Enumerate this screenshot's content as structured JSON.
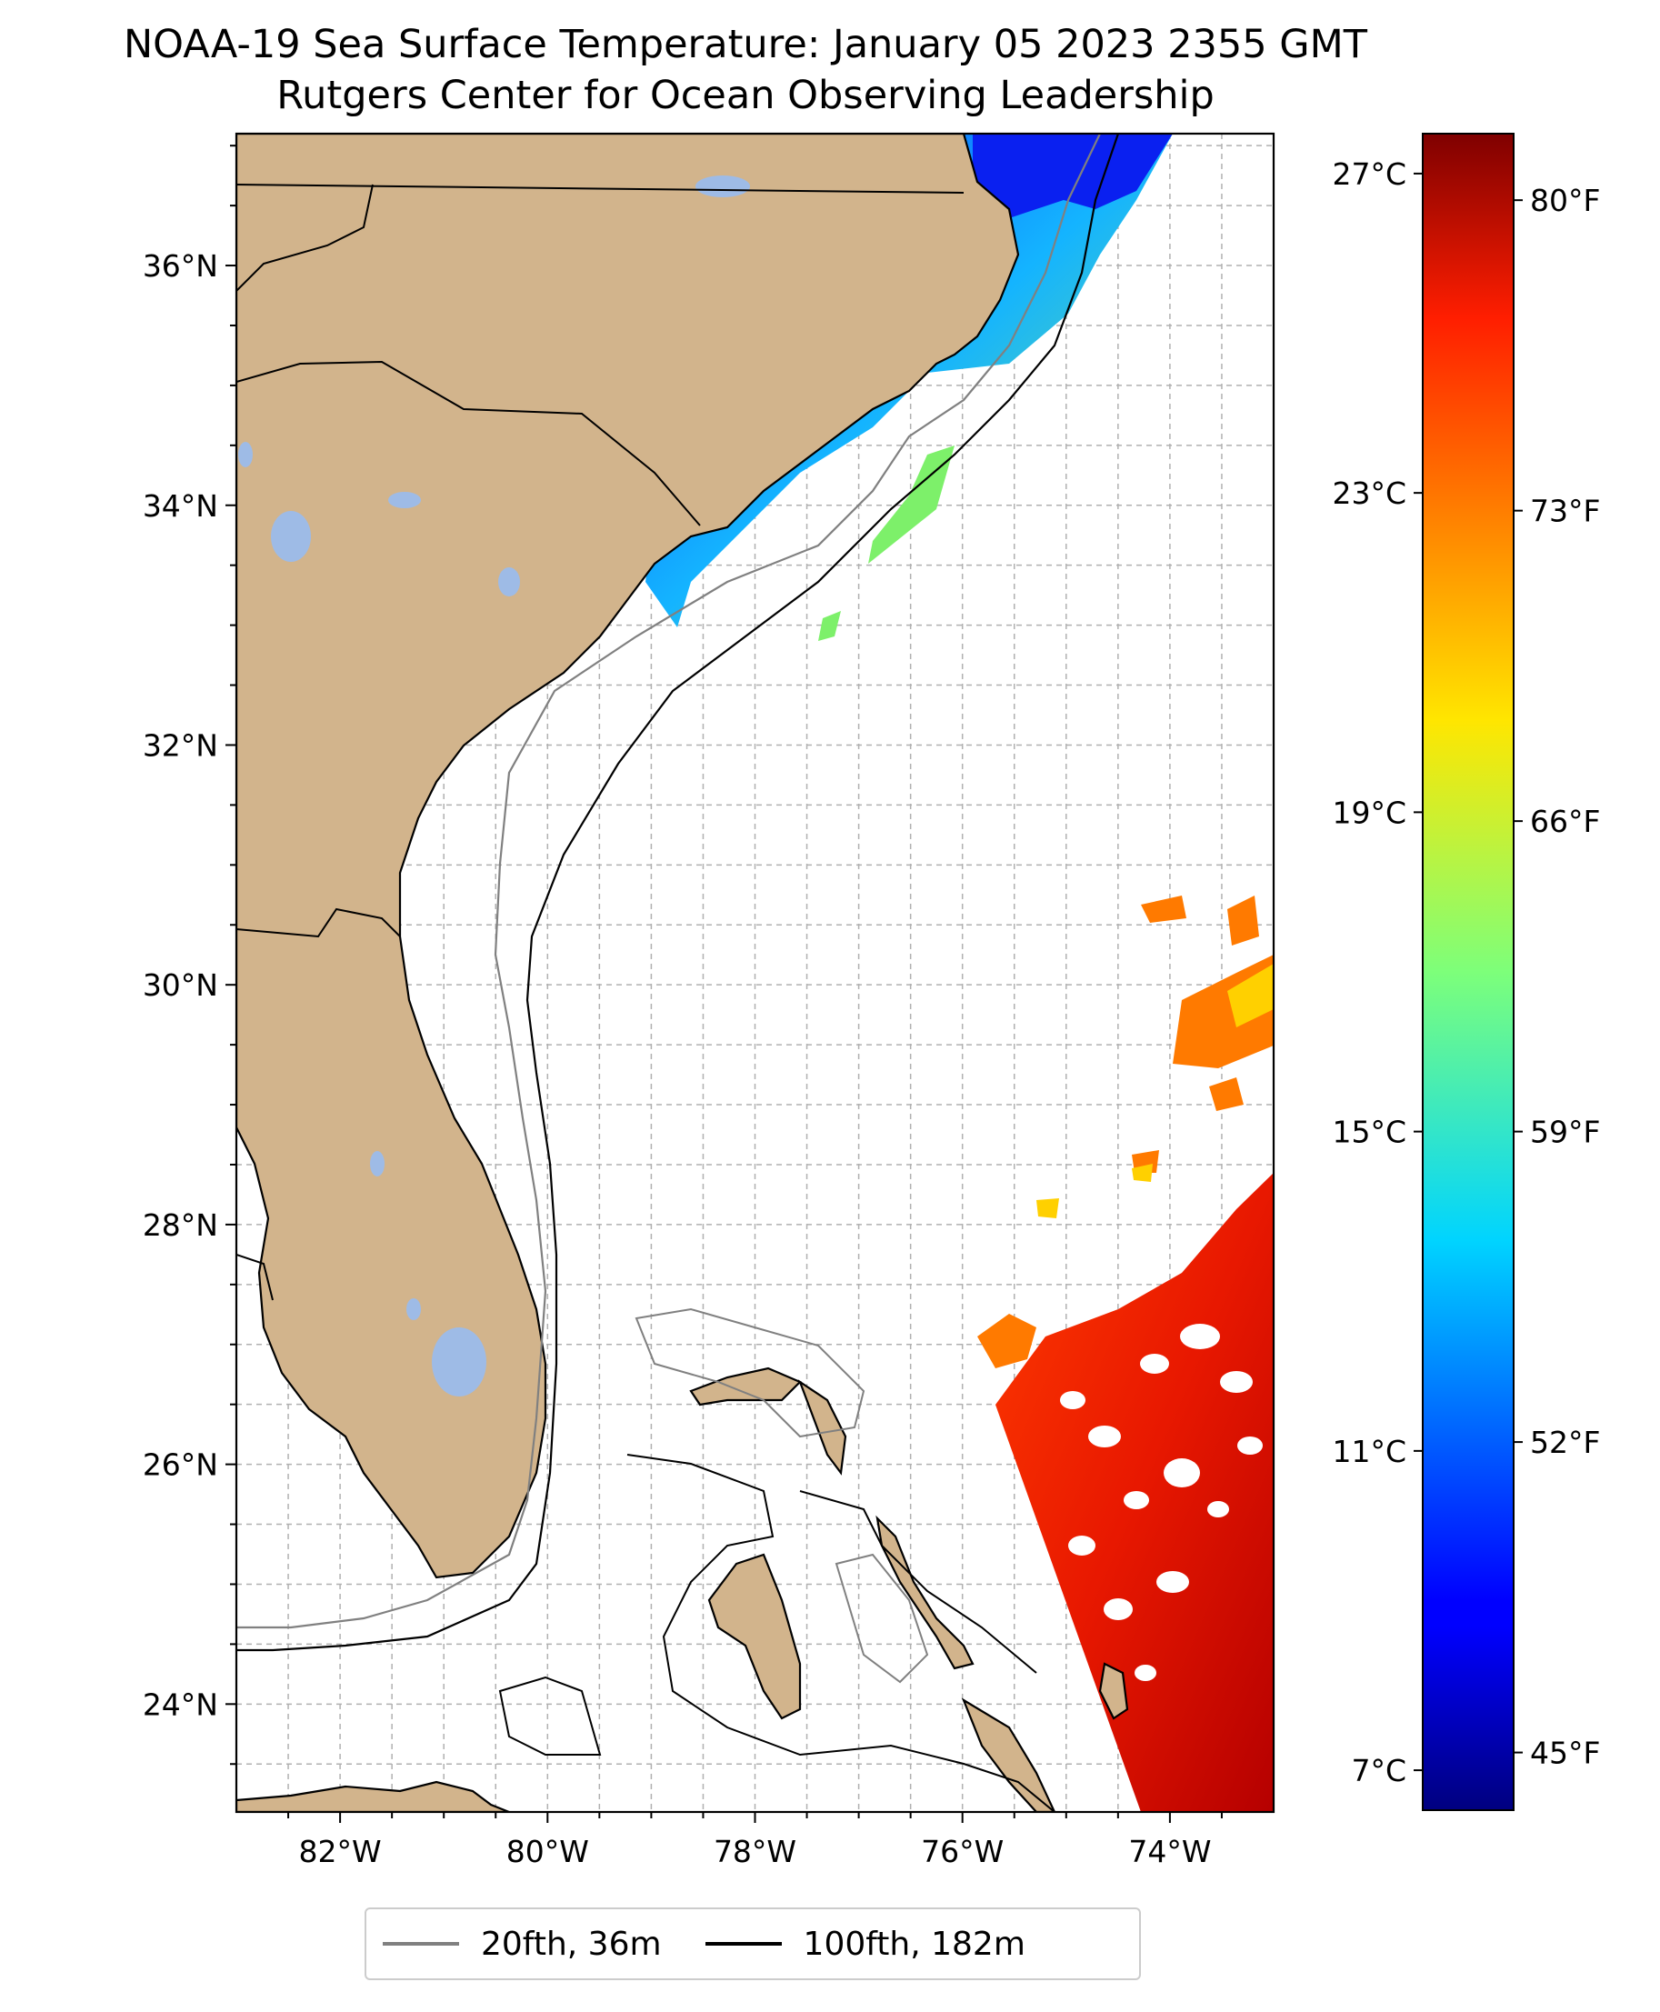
{
  "title": "NOAA-19 Sea Surface Temperature: January 05 2023 2355 GMT",
  "subtitle": "Rutgers Center for Ocean Observing Leadership",
  "map": {
    "lon_range": [
      -83,
      -73
    ],
    "lat_range": [
      23.1,
      37.1
    ],
    "lon_ticks": [
      "82°W",
      "80°W",
      "78°W",
      "76°W",
      "74°W"
    ],
    "lat_ticks": [
      "36°N",
      "34°N",
      "32°N",
      "30°N",
      "28°N",
      "26°N",
      "24°N"
    ],
    "land_color": "#d2b48c",
    "lake_color": "#9ebbe6",
    "gridlines": true
  },
  "colorbar": {
    "colormap": "jet",
    "celsius_ticks": [
      "27°C",
      "23°C",
      "19°C",
      "15°C",
      "11°C",
      "7°C"
    ],
    "fahrenheit_ticks": [
      "80°F",
      "73°F",
      "66°F",
      "59°F",
      "52°F",
      "45°F"
    ]
  },
  "legend": {
    "items": [
      {
        "label": "20fth, 36m",
        "color": "#808080"
      },
      {
        "label": "100fth, 182m",
        "color": "#000000"
      }
    ]
  }
}
